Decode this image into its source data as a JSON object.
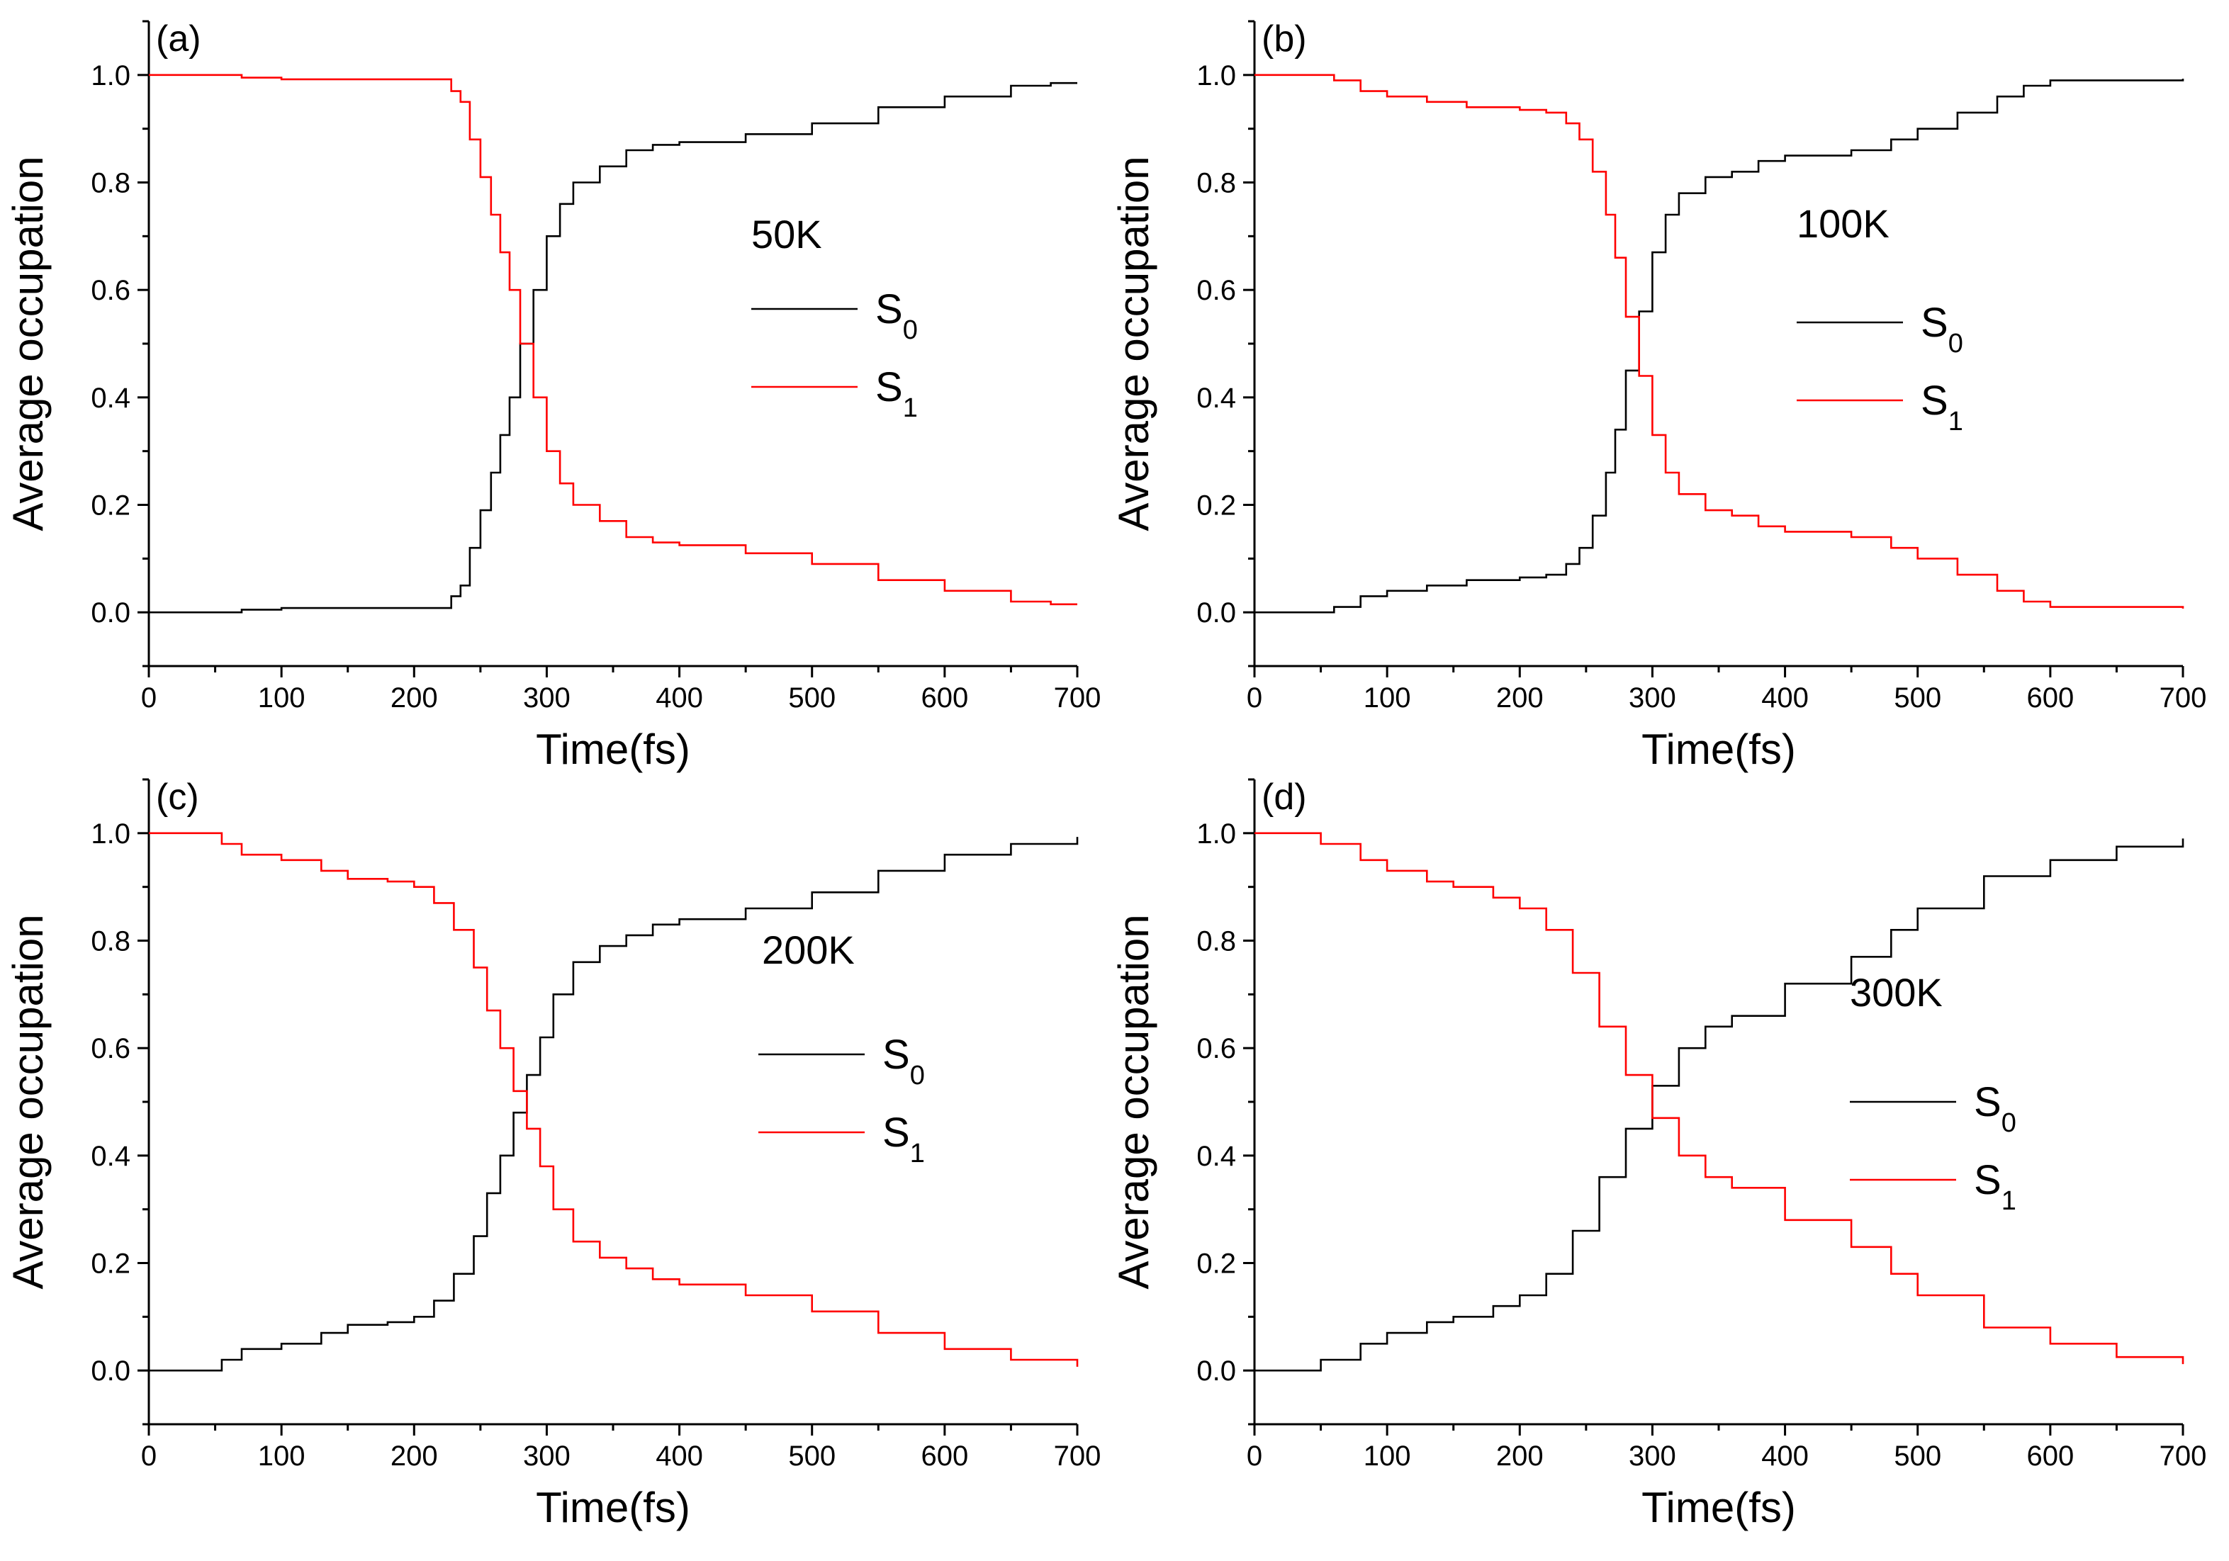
{
  "chart_data": [
    {
      "type": "line",
      "panel": "(a)",
      "temperature": "50K",
      "xlabel": "Time(fs)",
      "ylabel": "Average occupation",
      "xlim": [
        0,
        700
      ],
      "ylim": [
        -0.1,
        1.1
      ],
      "xticks": [
        "0",
        "100",
        "200",
        "300",
        "400",
        "500",
        "600",
        "700"
      ],
      "yticks": [
        "0.0",
        "0.2",
        "0.4",
        "0.6",
        "0.8",
        "1.0"
      ],
      "legend_position": "center-right",
      "series": [
        {
          "name": "S",
          "sub": "0",
          "color": "#000000",
          "x": [
            0,
            60,
            70,
            100,
            150,
            200,
            222,
            228,
            235,
            242,
            250,
            258,
            265,
            272,
            280,
            290,
            300,
            310,
            320,
            340,
            360,
            380,
            400,
            450,
            500,
            550,
            600,
            650,
            680,
            700
          ],
          "y": [
            0.0,
            0.0,
            0.005,
            0.008,
            0.008,
            0.008,
            0.008,
            0.03,
            0.05,
            0.12,
            0.19,
            0.26,
            0.33,
            0.4,
            0.5,
            0.6,
            0.7,
            0.76,
            0.8,
            0.83,
            0.86,
            0.87,
            0.875,
            0.89,
            0.91,
            0.94,
            0.96,
            0.98,
            0.985,
            0.985
          ]
        },
        {
          "name": "S",
          "sub": "1",
          "color": "#ff0000",
          "x": [
            0,
            60,
            70,
            100,
            150,
            200,
            222,
            228,
            235,
            242,
            250,
            258,
            265,
            272,
            280,
            290,
            300,
            310,
            320,
            340,
            360,
            380,
            400,
            450,
            500,
            550,
            600,
            650,
            680,
            700
          ],
          "y": [
            1.0,
            1.0,
            0.995,
            0.992,
            0.992,
            0.992,
            0.992,
            0.97,
            0.95,
            0.88,
            0.81,
            0.74,
            0.67,
            0.6,
            0.5,
            0.4,
            0.3,
            0.24,
            0.2,
            0.17,
            0.14,
            0.13,
            0.125,
            0.11,
            0.09,
            0.06,
            0.04,
            0.02,
            0.015,
            0.015
          ]
        }
      ]
    },
    {
      "type": "line",
      "panel": "(b)",
      "temperature": "100K",
      "xlabel": "Time(fs)",
      "ylabel": "Average occupation",
      "xlim": [
        0,
        700
      ],
      "ylim": [
        -0.1,
        1.1
      ],
      "xticks": [
        "0",
        "100",
        "200",
        "300",
        "400",
        "500",
        "600",
        "700"
      ],
      "yticks": [
        "0.0",
        "0.2",
        "0.4",
        "0.6",
        "0.8",
        "1.0"
      ],
      "legend_position": "center-right",
      "series": [
        {
          "name": "S",
          "sub": "0",
          "color": "#000000",
          "x": [
            0,
            30,
            60,
            80,
            100,
            130,
            160,
            200,
            220,
            235,
            245,
            255,
            265,
            272,
            280,
            290,
            300,
            310,
            320,
            340,
            360,
            380,
            400,
            450,
            480,
            500,
            530,
            560,
            580,
            600,
            700
          ],
          "y": [
            0.0,
            0.0,
            0.01,
            0.03,
            0.04,
            0.05,
            0.06,
            0.065,
            0.07,
            0.09,
            0.12,
            0.18,
            0.26,
            0.34,
            0.45,
            0.56,
            0.67,
            0.74,
            0.78,
            0.81,
            0.82,
            0.84,
            0.85,
            0.86,
            0.88,
            0.9,
            0.93,
            0.96,
            0.98,
            0.99,
            0.993
          ]
        },
        {
          "name": "S",
          "sub": "1",
          "color": "#ff0000",
          "x": [
            0,
            30,
            60,
            80,
            100,
            130,
            160,
            200,
            220,
            235,
            245,
            255,
            265,
            272,
            280,
            290,
            300,
            310,
            320,
            340,
            360,
            380,
            400,
            450,
            480,
            500,
            530,
            560,
            580,
            600,
            700
          ],
          "y": [
            1.0,
            1.0,
            0.99,
            0.97,
            0.96,
            0.95,
            0.94,
            0.935,
            0.93,
            0.91,
            0.88,
            0.82,
            0.74,
            0.66,
            0.55,
            0.44,
            0.33,
            0.26,
            0.22,
            0.19,
            0.18,
            0.16,
            0.15,
            0.14,
            0.12,
            0.1,
            0.07,
            0.04,
            0.02,
            0.01,
            0.007
          ]
        }
      ]
    },
    {
      "type": "line",
      "panel": "(c)",
      "temperature": "200K",
      "xlabel": "Time(fs)",
      "ylabel": "Average occupation",
      "xlim": [
        0,
        700
      ],
      "ylim": [
        -0.1,
        1.1
      ],
      "xticks": [
        "0",
        "100",
        "200",
        "300",
        "400",
        "500",
        "600",
        "700"
      ],
      "yticks": [
        "0.0",
        "0.2",
        "0.4",
        "0.6",
        "0.8",
        "1.0"
      ],
      "legend_position": "center-right",
      "series": [
        {
          "name": "S",
          "sub": "0",
          "color": "#000000",
          "x": [
            0,
            45,
            55,
            70,
            100,
            130,
            150,
            180,
            200,
            215,
            230,
            245,
            255,
            265,
            275,
            285,
            295,
            305,
            320,
            340,
            360,
            380,
            400,
            450,
            500,
            550,
            600,
            650,
            700
          ],
          "y": [
            0.0,
            0.0,
            0.02,
            0.04,
            0.05,
            0.07,
            0.085,
            0.09,
            0.1,
            0.13,
            0.18,
            0.25,
            0.33,
            0.4,
            0.48,
            0.55,
            0.62,
            0.7,
            0.76,
            0.79,
            0.81,
            0.83,
            0.84,
            0.86,
            0.89,
            0.93,
            0.96,
            0.98,
            0.993
          ]
        },
        {
          "name": "S",
          "sub": "1",
          "color": "#ff0000",
          "x": [
            0,
            45,
            55,
            70,
            100,
            130,
            150,
            180,
            200,
            215,
            230,
            245,
            255,
            265,
            275,
            285,
            295,
            305,
            320,
            340,
            360,
            380,
            400,
            450,
            500,
            550,
            600,
            650,
            700
          ],
          "y": [
            1.0,
            1.0,
            0.98,
            0.96,
            0.95,
            0.93,
            0.915,
            0.91,
            0.9,
            0.87,
            0.82,
            0.75,
            0.67,
            0.6,
            0.52,
            0.45,
            0.38,
            0.3,
            0.24,
            0.21,
            0.19,
            0.17,
            0.16,
            0.14,
            0.11,
            0.07,
            0.04,
            0.02,
            0.007
          ]
        }
      ]
    },
    {
      "type": "line",
      "panel": "(d)",
      "temperature": "300K",
      "xlabel": "Time(fs)",
      "ylabel": "Average occupation",
      "xlim": [
        0,
        700
      ],
      "ylim": [
        -0.1,
        1.1
      ],
      "xticks": [
        "0",
        "100",
        "200",
        "300",
        "400",
        "500",
        "600",
        "700"
      ],
      "yticks": [
        "0.0",
        "0.2",
        "0.4",
        "0.6",
        "0.8",
        "1.0"
      ],
      "legend_position": "center-right",
      "series": [
        {
          "name": "S",
          "sub": "0",
          "color": "#000000",
          "x": [
            0,
            40,
            50,
            80,
            100,
            130,
            150,
            180,
            200,
            220,
            240,
            260,
            280,
            300,
            320,
            340,
            360,
            400,
            450,
            480,
            500,
            550,
            600,
            650,
            700
          ],
          "y": [
            0.0,
            0.0,
            0.02,
            0.05,
            0.07,
            0.09,
            0.1,
            0.12,
            0.14,
            0.18,
            0.26,
            0.36,
            0.45,
            0.53,
            0.6,
            0.64,
            0.66,
            0.72,
            0.77,
            0.82,
            0.86,
            0.92,
            0.95,
            0.975,
            0.99
          ]
        },
        {
          "name": "S",
          "sub": "1",
          "color": "#ff0000",
          "x": [
            0,
            40,
            50,
            80,
            100,
            130,
            150,
            180,
            200,
            220,
            240,
            260,
            280,
            300,
            320,
            340,
            360,
            400,
            450,
            480,
            500,
            550,
            600,
            650,
            700
          ],
          "y": [
            1.0,
            1.0,
            0.98,
            0.95,
            0.93,
            0.91,
            0.9,
            0.88,
            0.86,
            0.82,
            0.74,
            0.64,
            0.55,
            0.47,
            0.4,
            0.36,
            0.34,
            0.28,
            0.23,
            0.18,
            0.14,
            0.08,
            0.05,
            0.025,
            0.012
          ]
        }
      ]
    }
  ]
}
